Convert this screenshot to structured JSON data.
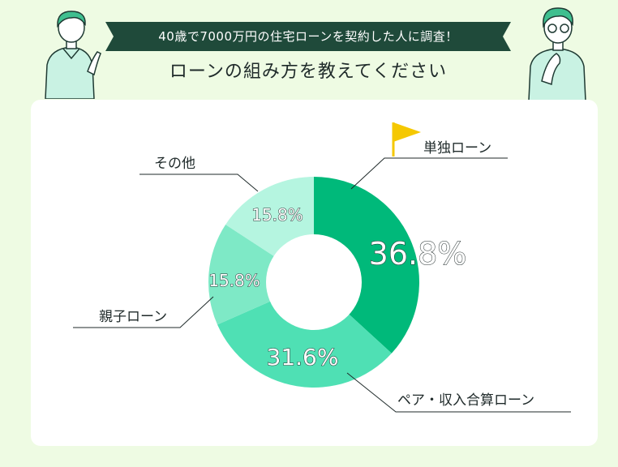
{
  "header": {
    "banner": "40歳で7000万円の住宅ローンを契約した人に調査！",
    "subtitle": "ローンの組み方を教えてください"
  },
  "chart_data": {
    "type": "pie",
    "categories": [
      "単独ローン",
      "ペア・収入合算ローン",
      "親子ローン",
      "その他"
    ],
    "values": [
      36.8,
      31.6,
      15.8,
      15.8
    ],
    "value_labels": [
      "36.8%",
      "31.6%",
      "15.8%",
      "15.8%"
    ],
    "colors": [
      "#00b97a",
      "#4fe0b4",
      "#7ee9c6",
      "#b5f5e0"
    ],
    "donut": true,
    "highlight_icon": "flag-icon",
    "accent": "#f5c800"
  }
}
